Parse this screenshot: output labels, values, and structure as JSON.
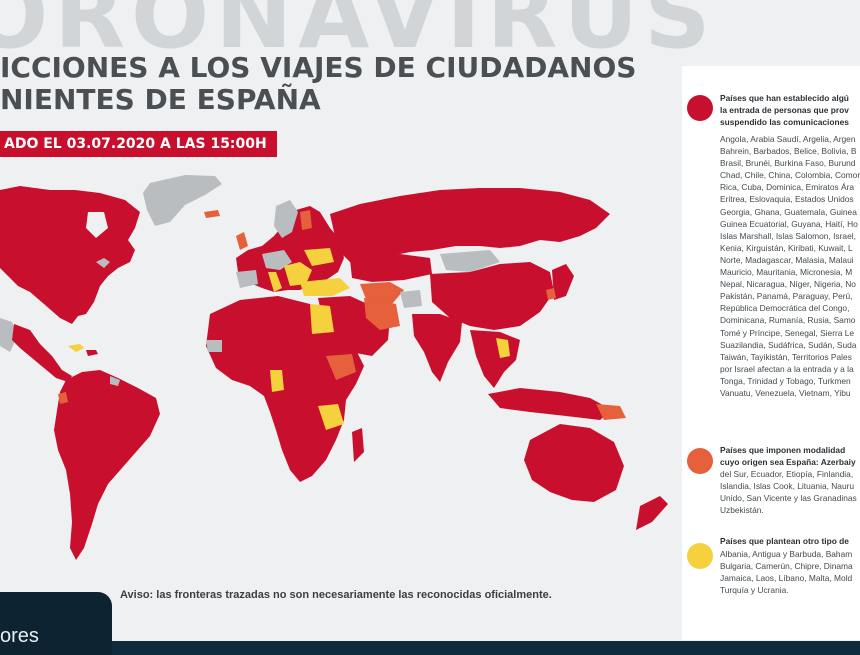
{
  "banner_text": "ORONAVIRUS",
  "title_line1": "ICCIONES A LOS VIAJES DE CIUDADANOS",
  "title_line2": "NIENTES DE ESPAÑA",
  "date_badge": "ADO EL 03.07.2020 A LAS 15:00H",
  "disclaimer": "Aviso: las fronteras trazadas no son necesariamente las reconocidas oficialmente.",
  "footer_logo": "ores",
  "colors": {
    "restricted_red": "#c8102e",
    "modality_orange": "#e5603b",
    "other_yellow": "#f5d13d",
    "no_data_gray": "#b9bdc0",
    "ocean": "#eef0f1"
  },
  "legend": [
    {
      "color_key": "restricted_red",
      "heading_lines": [
        "Países que han establecido algú",
        "la entrada de personas que prov",
        "suspendido las comunicaciones"
      ],
      "list_lines": [
        "Angola, Arabia Saudí, Argelia, Argen",
        "Bahrein, Barbados, Belice, Bolivia, B",
        "Brasil, Brunéi, Burkina Faso, Burund",
        "Chad, Chile, China, Colombia, Comor",
        "Rica, Cuba, Dominica, Emiratos Ára",
        "Eritrea, Eslovaquia, Estados Unidos",
        "Georgia, Ghana, Guatemala, Guinea",
        "Guinea Ecuatorial, Guyana, Haití, Ho",
        "Islas Marshall, Islas Salomon, Israel,",
        "Kenia, Kirguistán, Kiribati, Kuwait, L",
        "Norte, Madagascar, Malasia, Malaui",
        "Mauricio, Mauritania, Micronesia, M",
        "Nepal, Nicaragua, Níger, Nigeria, No",
        "Pakistán, Panamá, Paraguay, Perú,",
        "República Democrática del Congo,",
        "Dominicana, Rumanía, Rusia, Samo",
        "Tomé y Príncipe, Senegal, Sierra Le",
        "Suazilandia, Sudáfrica, Sudán, Suda",
        "Taiwán, Tayikistán, Territorios Pales",
        "por Israel afectan a la entrada y a la",
        "Tonga, Trinidad y Tobago, Turkmen",
        "Vanuatu, Venezuela, Vietnam, Yibu"
      ]
    },
    {
      "color_key": "modality_orange",
      "heading_lines": [
        "Países que imponen modalidad",
        "cuyo origen sea España: Azerbaiy"
      ],
      "list_lines": [
        "del Sur, Ecuador, Etiopía, Finlandia,",
        "Islandia, Islas Cook, Lituania, Nauru",
        "Unido, San Vicente y las Granadinas",
        "Uzbekistán."
      ]
    },
    {
      "color_key": "other_yellow",
      "heading_lines": [
        "Países que plantean otro tipo de"
      ],
      "list_lines": [
        "Albania, Antigua y Barbuda, Baham",
        "Bulgaria, Camerún, Chipre, Dinama",
        "Jamaica, Laos, Líbano, Malta, Mold",
        "Turquía y Ucrania."
      ]
    }
  ]
}
